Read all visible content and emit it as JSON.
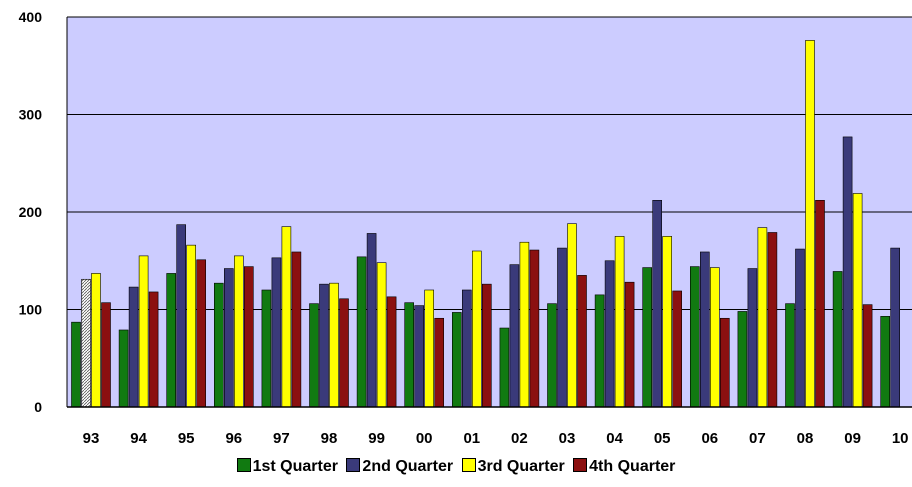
{
  "chart_data": {
    "type": "bar",
    "title": "",
    "xlabel": "",
    "ylabel": "",
    "ylim": [
      0,
      400
    ],
    "yticks": [
      "0",
      "100",
      "200",
      "300",
      "400"
    ],
    "grid": true,
    "legend_position": "bottom",
    "categories": [
      "93",
      "94",
      "95",
      "96",
      "97",
      "98",
      "99",
      "00",
      "01",
      "02",
      "03",
      "04",
      "05",
      "06",
      "07",
      "08",
      "09",
      "10"
    ],
    "series": [
      {
        "name": "1st Quarter",
        "color": "#117a11",
        "values": [
          87,
          79,
          137,
          127,
          120,
          106,
          154,
          107,
          97,
          81,
          106,
          115,
          143,
          144,
          98,
          106,
          139,
          93
        ]
      },
      {
        "name": "2nd Quarter",
        "color": "#3a3a7a",
        "values": [
          131,
          123,
          187,
          142,
          153,
          126,
          178,
          104,
          120,
          146,
          163,
          150,
          212,
          159,
          142,
          162,
          277,
          163
        ]
      },
      {
        "name": "3rd Quarter",
        "color": "#ffff00",
        "values": [
          137,
          155,
          166,
          155,
          185,
          127,
          148,
          120,
          160,
          169,
          188,
          175,
          175,
          143,
          184,
          376,
          219,
          null
        ]
      },
      {
        "name": "4th Quarter",
        "color": "#8b1010",
        "values": [
          107,
          118,
          151,
          144,
          159,
          111,
          113,
          91,
          126,
          161,
          135,
          128,
          119,
          91,
          179,
          212,
          105,
          null
        ]
      }
    ],
    "hatched_points": [
      {
        "series": "2nd Quarter",
        "category": "93"
      }
    ],
    "plot_background": "#ccccff"
  }
}
